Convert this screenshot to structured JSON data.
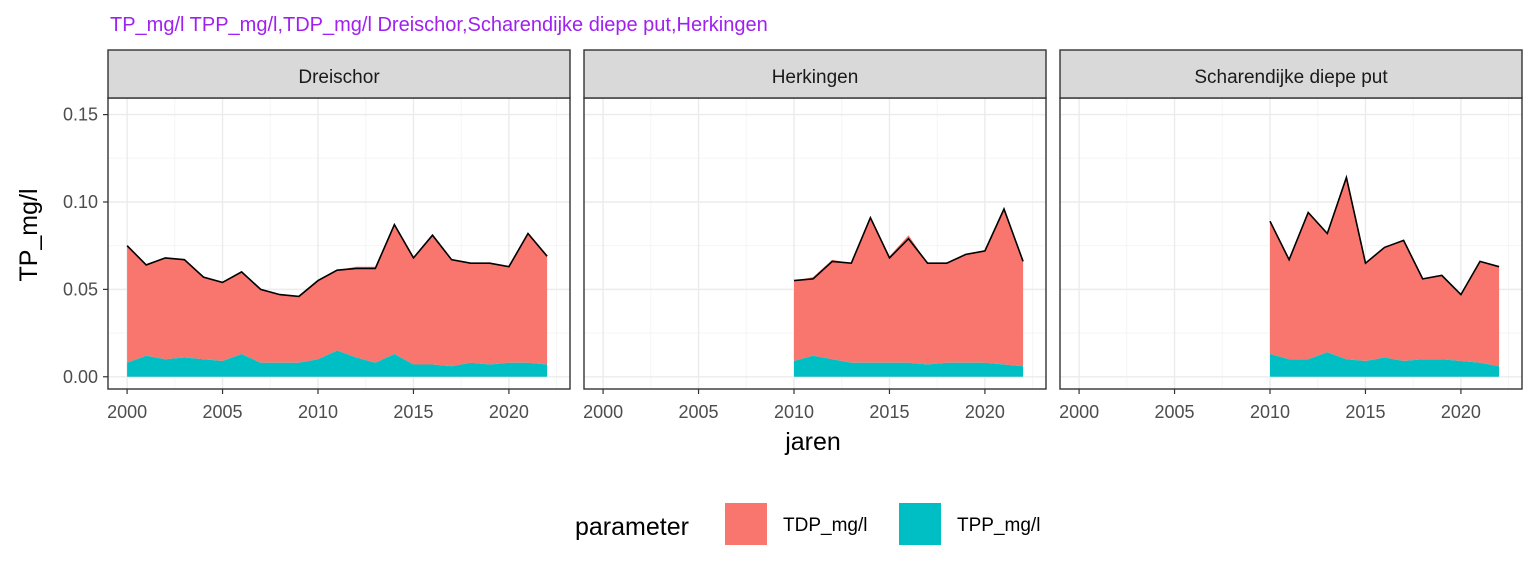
{
  "chart_data": {
    "type": "area",
    "title": "TP_mg/l TPP_mg/l,TDP_mg/l Dreischor,Scharendijke diepe put,Herkingen",
    "xlabel": "jaren",
    "ylabel": "TP_mg/l",
    "xlim": [
      1999,
      2023.2
    ],
    "ylim": [
      -0.007,
      0.1595
    ],
    "xticks": [
      "2000",
      "2005",
      "2010",
      "2015",
      "2020"
    ],
    "yticks": [
      "0.00",
      "0.05",
      "0.10",
      "0.15"
    ],
    "x_tick_values": [
      2000,
      2005,
      2010,
      2015,
      2020
    ],
    "y_tick_values": [
      0,
      0.05,
      0.1,
      0.15
    ],
    "stacked": true,
    "grid": true,
    "legend": {
      "title": "parameter",
      "position": "bottom",
      "entries": [
        {
          "label": "TDP_mg/l",
          "color": "#F8766D"
        },
        {
          "label": "TPP_mg/l",
          "color": "#00BFC4"
        }
      ]
    },
    "facets": [
      {
        "name": "Dreischor",
        "x": [
          2000,
          2001,
          2002,
          2003,
          2004,
          2005,
          2006,
          2007,
          2008,
          2009,
          2010,
          2011,
          2012,
          2013,
          2014,
          2015,
          2016,
          2017,
          2018,
          2019,
          2020,
          2021,
          2022
        ],
        "series": [
          {
            "name": "TPP_mg/l",
            "values": [
              0.008,
              0.012,
              0.01,
              0.011,
              0.01,
              0.009,
              0.013,
              0.008,
              0.008,
              0.008,
              0.01,
              0.015,
              0.011,
              0.008,
              0.013,
              0.007,
              0.007,
              0.006,
              0.008,
              0.007,
              0.008,
              0.008,
              0.007
            ]
          },
          {
            "name": "TDP_mg/l",
            "values": [
              0.067,
              0.052,
              0.058,
              0.056,
              0.047,
              0.045,
              0.047,
              0.042,
              0.039,
              0.038,
              0.045,
              0.046,
              0.052,
              0.055,
              0.073,
              0.061,
              0.074,
              0.061,
              0.057,
              0.058,
              0.055,
              0.074,
              0.062
            ]
          }
        ],
        "total": [
          0.075,
          0.064,
          0.068,
          0.067,
          0.057,
          0.054,
          0.06,
          0.05,
          0.047,
          0.046,
          0.055,
          0.061,
          0.062,
          0.062,
          0.087,
          0.068,
          0.081,
          0.067,
          0.065,
          0.065,
          0.063,
          0.082,
          0.069
        ]
      },
      {
        "name": "Herkingen",
        "x": [
          2010,
          2011,
          2012,
          2013,
          2014,
          2015,
          2016,
          2017,
          2018,
          2019,
          2020,
          2021,
          2022
        ],
        "series": [
          {
            "name": "TPP_mg/l",
            "values": [
              0.009,
              0.012,
              0.01,
              0.008,
              0.008,
              0.008,
              0.008,
              0.007,
              0.008,
              0.008,
              0.008,
              0.007,
              0.006
            ]
          },
          {
            "name": "TDP_mg/l",
            "values": [
              0.046,
              0.045,
              0.057,
              0.057,
              0.084,
              0.061,
              0.073,
              0.058,
              0.057,
              0.062,
              0.064,
              0.09,
              0.06
            ]
          }
        ],
        "total": [
          0.055,
          0.056,
          0.066,
          0.065,
          0.091,
          0.068,
          0.079,
          0.065,
          0.065,
          0.07,
          0.072,
          0.096,
          0.066
        ]
      },
      {
        "name": "Scharendijke diepe put",
        "x": [
          2010,
          2011,
          2012,
          2013,
          2014,
          2015,
          2016,
          2017,
          2018,
          2019,
          2020,
          2021,
          2022
        ],
        "series": [
          {
            "name": "TPP_mg/l",
            "values": [
              0.013,
              0.01,
              0.01,
              0.014,
              0.01,
              0.009,
              0.011,
              0.009,
              0.01,
              0.01,
              0.009,
              0.008,
              0.006
            ]
          },
          {
            "name": "TDP_mg/l",
            "values": [
              0.076,
              0.057,
              0.084,
              0.068,
              0.104,
              0.056,
              0.063,
              0.069,
              0.046,
              0.048,
              0.038,
              0.058,
              0.057
            ]
          }
        ],
        "total": [
          0.089,
          0.067,
          0.094,
          0.082,
          0.114,
          0.065,
          0.074,
          0.078,
          0.056,
          0.058,
          0.047,
          0.066,
          0.063
        ]
      }
    ]
  },
  "colors": {
    "title": "#A020F0",
    "strip_fill": "#D9D9D9",
    "panel_border": "#333333",
    "grid_major": "#EBEBEB",
    "grid_minor": "#F5F5F5",
    "total_line": "#000000"
  }
}
